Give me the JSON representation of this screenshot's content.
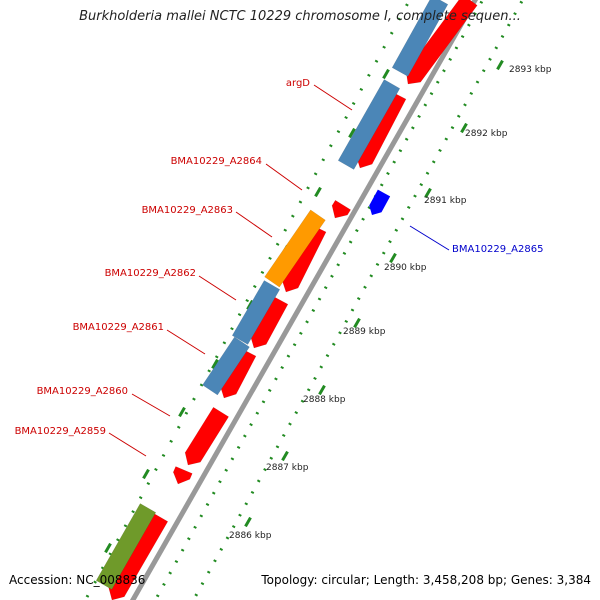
{
  "title": "Burkholderia mallei NCTC 10229 chromosome I, complete sequen...",
  "footer": {
    "accession": "Accession: NC_008836",
    "summary": "Topology: circular; Length: 3,458,208 bp; Genes: 3,384"
  },
  "colors": {
    "cds_forward": "#ff0000",
    "cds_reverse": "#0000ff",
    "gene_bar_default": "#4b86b7",
    "gene_bar_orange": "#ff9a00",
    "gene_bar_green": "#6f9a2a",
    "backbone": "#999999",
    "tick": "#228b22",
    "label_forward": "#cc0000",
    "label_reverse": "#0000cc"
  },
  "scale_ticks": [
    "2886 kbp",
    "2887 kbp",
    "2888 kbp",
    "2889 kbp",
    "2890 kbp",
    "2891 kbp",
    "2892 kbp",
    "2893 kbp"
  ],
  "gene_labels": [
    {
      "name": "argD",
      "strand": "forward"
    },
    {
      "name": "BMA10229_A2864",
      "strand": "forward"
    },
    {
      "name": "BMA10229_A2863",
      "strand": "forward"
    },
    {
      "name": "BMA10229_A2862",
      "strand": "forward"
    },
    {
      "name": "BMA10229_A2861",
      "strand": "forward"
    },
    {
      "name": "BMA10229_A2860",
      "strand": "forward"
    },
    {
      "name": "BMA10229_A2859",
      "strand": "forward"
    },
    {
      "name": "BMA10229_A2865",
      "strand": "reverse"
    }
  ]
}
